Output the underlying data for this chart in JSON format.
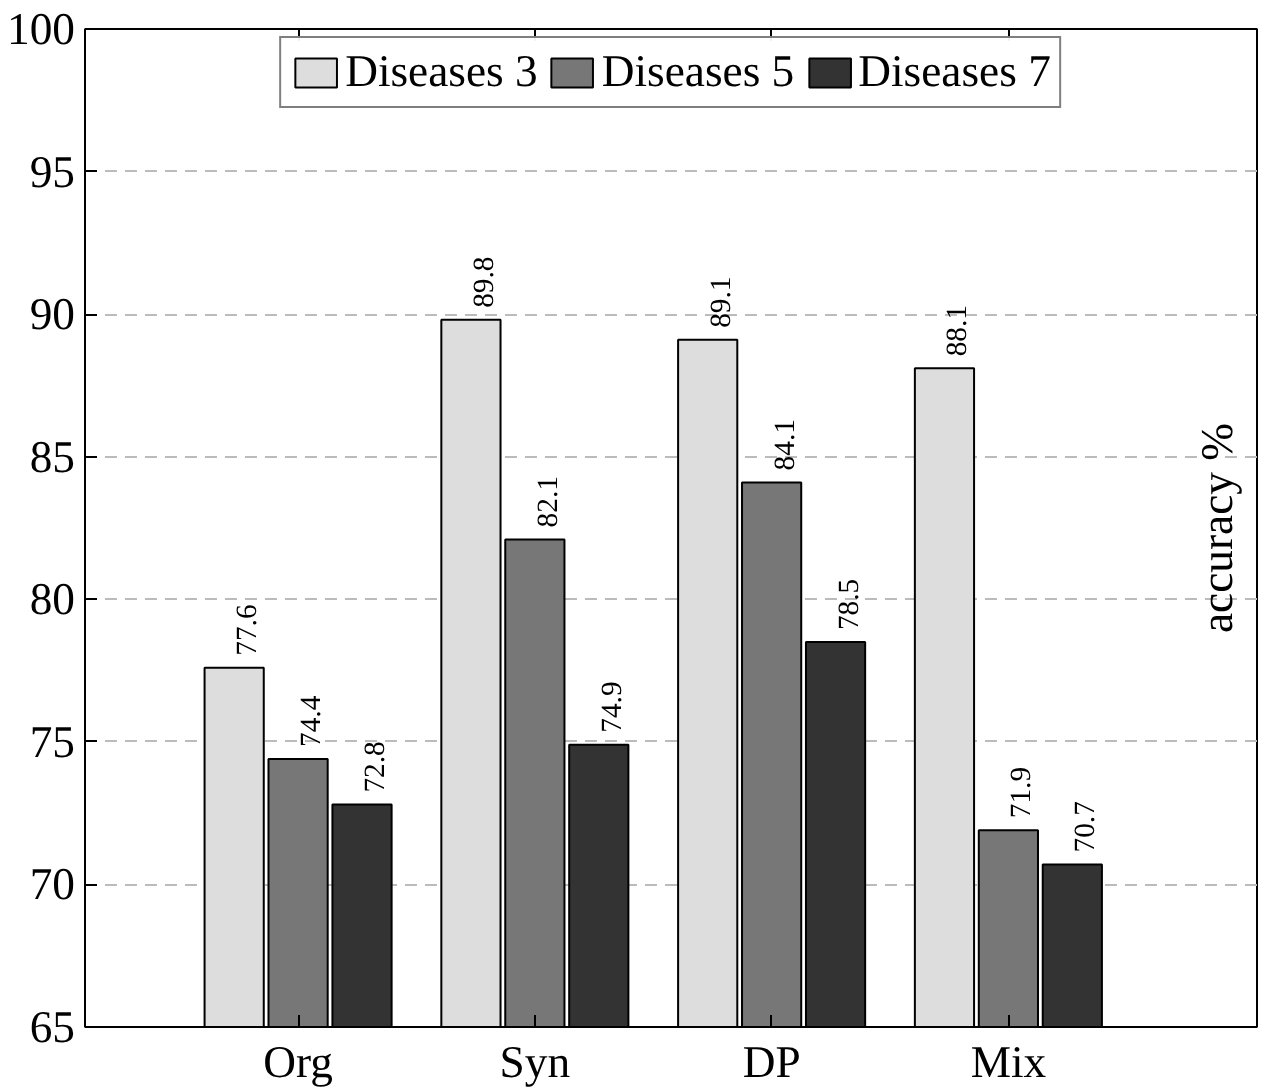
{
  "chart_data": {
    "type": "bar",
    "ylabel": "accuracy %",
    "categories": [
      "Org",
      "Syn",
      "DP",
      "Mix"
    ],
    "series": [
      {
        "name": "Diseases 3",
        "color": "#dddddd",
        "values": [
          77.6,
          89.8,
          89.1,
          88.1
        ]
      },
      {
        "name": "Diseases 5",
        "color": "#777777",
        "values": [
          74.4,
          82.1,
          84.1,
          71.9
        ]
      },
      {
        "name": "Diseases 7",
        "color": "#333333",
        "values": [
          72.8,
          74.9,
          78.5,
          70.7
        ]
      }
    ],
    "ylim": [
      65,
      100
    ],
    "yticks": [
      65,
      70,
      75,
      80,
      85,
      90,
      95,
      100
    ],
    "grid": "y",
    "legend": "top",
    "data_labels": true
  }
}
